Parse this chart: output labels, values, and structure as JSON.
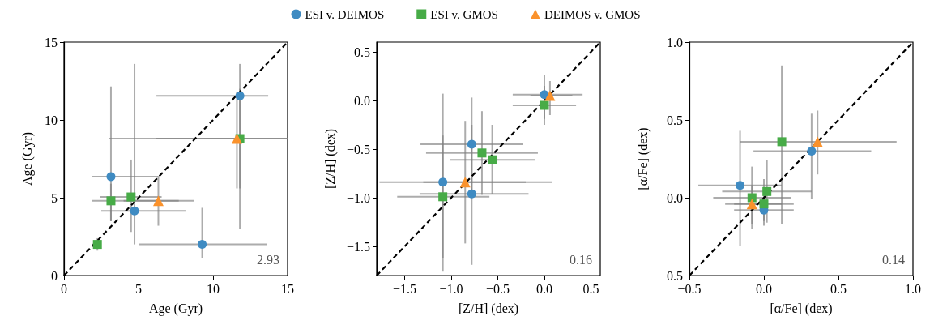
{
  "chart_data": [
    {
      "type": "scatter",
      "xlabel": "Age (Gyr)",
      "ylabel": "Age (Gyr)",
      "xlim": [
        0,
        15
      ],
      "ylim": [
        0,
        15
      ],
      "xticks": [
        0,
        5,
        10,
        15
      ],
      "yticks": [
        0,
        5,
        10,
        15
      ],
      "annotations": [
        "2.93"
      ],
      "series": [
        {
          "color": "#3f8bc2",
          "marker": "circle",
          "x": [
            11.8,
            3.15,
            4.73,
            9.27
          ],
          "values": [
            11.55,
            6.35,
            4.15,
            2.0
          ],
          "xerrors": [
            [
              6.2,
              13.7
            ],
            [
              1.9,
              6.3
            ],
            [
              2.5,
              8.15
            ],
            [
              5.0,
              13.6
            ]
          ],
          "errors": [
            [
              3.0,
              13.6
            ],
            [
              3.5,
              12.15
            ],
            [
              2.0,
              13.6
            ],
            [
              1.1,
              4.35
            ]
          ]
        },
        {
          "color": "#47ab47",
          "marker": "square",
          "x": [
            11.8,
            2.24,
            3.15,
            4.5
          ],
          "values": [
            8.8,
            2.0,
            4.8,
            5.05
          ],
          "xerrors": [
            [
              3.0,
              15.0
            ],
            [
              1.9,
              2.5
            ],
            [
              1.9,
              7.7
            ],
            [
              2.4,
              6.55
            ]
          ],
          "errors": [
            [
              5.6,
              12.0
            ],
            [
              1.6,
              2.4
            ],
            [
              3.5,
              5.9
            ],
            [
              2.8,
              7.45
            ]
          ]
        },
        {
          "color": "#fa922c",
          "marker": "triangle",
          "x": [
            11.6,
            6.33
          ],
          "values": [
            8.8,
            4.8
          ],
          "xerrors": [
            [
              6.15,
              15.0
            ],
            [
              4.0,
              8.7
            ]
          ],
          "errors": [
            [
              5.6,
              11.8
            ],
            [
              3.2,
              6.4
            ]
          ]
        },
        {
          "type": "line",
          "color": "#000000",
          "line_style": "dashed",
          "marker": "none",
          "x": [
            0,
            15
          ],
          "values": [
            0,
            15
          ]
        }
      ]
    },
    {
      "type": "scatter",
      "xlabel": "[Z/H] (dex)",
      "ylabel": "[Z/H] (dex)",
      "xlim": [
        -1.8,
        0.6
      ],
      "ylim": [
        -1.8,
        0.6
      ],
      "legend": "top",
      "xticks": [
        -1.5,
        {
          "value": -1,
          "label": "−1.0"
        },
        -0.5,
        {
          "value": 0,
          "label": "0.0"
        },
        0.5
      ],
      "yticks": [
        -1.5,
        {
          "value": -1,
          "label": "−1.0"
        },
        -0.5,
        {
          "value": 0,
          "label": "0.0"
        },
        0.5
      ],
      "annotations": [
        "0.16"
      ],
      "series": [
        {
          "name": "ESI v. DEIMOS",
          "color": "#3f8bc2",
          "marker": "circle",
          "x": [
            0.0,
            -0.78,
            -0.78,
            -1.09
          ],
          "values": [
            0.06,
            -0.45,
            -0.96,
            -0.84
          ],
          "xerrors": [
            [
              -0.34,
              0.41
            ],
            [
              -1.33,
              -0.23
            ],
            [
              -1.34,
              -0.17
            ],
            [
              -1.77,
              0.08
            ]
          ],
          "errors": [
            [
              -0.19,
              0.26
            ],
            [
              -0.97,
              0.03
            ],
            [
              -1.69,
              -0.25
            ],
            [
              -1.62,
              0.07
            ]
          ]
        },
        {
          "name": "ESI v. GMOS",
          "color": "#47ab47",
          "marker": "square",
          "x": [
            0.0,
            -0.67,
            -0.56,
            -1.09
          ],
          "values": [
            -0.05,
            -0.54,
            -0.61,
            -0.99
          ],
          "xerrors": [
            [
              -0.34,
              0.34
            ],
            [
              -1.27,
              -0.07
            ],
            [
              -1.01,
              -0.1
            ],
            [
              -1.58,
              -0.59
            ]
          ],
          "errors": [
            [
              -0.25,
              0.15
            ],
            [
              -0.97,
              -0.11
            ],
            [
              -0.96,
              -0.25
            ],
            [
              -1.76,
              -0.36
            ]
          ]
        },
        {
          "name": "DEIMOS v. GMOS",
          "color": "#fa922c",
          "marker": "triangle",
          "x": [
            0.06,
            -0.85
          ],
          "values": [
            0.05,
            -0.84
          ],
          "xerrors": [
            [
              -0.15,
              0.3
            ],
            [
              -1.3,
              -0.2
            ]
          ],
          "errors": [
            [
              -0.15,
              0.2
            ],
            [
              -1.47,
              -0.21
            ]
          ]
        },
        {
          "type": "line",
          "color": "#000000",
          "line_style": "dashed",
          "marker": "none",
          "x": [
            -1.8,
            0.6
          ],
          "values": [
            -1.8,
            0.6
          ]
        }
      ]
    },
    {
      "type": "scatter",
      "xlabel": "[α/Fe] (dex)",
      "ylabel": "[α/Fe] (dex)",
      "xlim": [
        -0.5,
        1.0
      ],
      "ylim": [
        -0.5,
        1.0
      ],
      "xticks": [
        -0.5,
        {
          "value": 0,
          "label": "0.0"
        },
        0.5,
        {
          "value": 1,
          "label": "1.0"
        }
      ],
      "yticks": [
        -0.5,
        {
          "value": 0,
          "label": "0.0"
        },
        0.5,
        {
          "value": 1,
          "label": "1.0"
        }
      ],
      "annotations": [
        "0.14"
      ],
      "series": [
        {
          "color": "#3f8bc2",
          "marker": "circle",
          "x": [
            -0.16,
            0.0,
            0.32
          ],
          "values": [
            0.08,
            -0.08,
            0.3
          ],
          "xerrors": [
            [
              -0.44,
              0.12
            ],
            [
              -0.2,
              0.2
            ],
            [
              -0.07,
              0.72
            ]
          ],
          "errors": [
            [
              -0.31,
              0.43
            ],
            [
              -0.15,
              0.0
            ],
            [
              -0.01,
              0.54
            ]
          ]
        },
        {
          "color": "#47ab47",
          "marker": "square",
          "x": [
            0.12,
            0.02,
            -0.08,
            0.0
          ],
          "values": [
            0.36,
            0.04,
            0.0,
            -0.04
          ],
          "xerrors": [
            [
              -0.16,
              0.32
            ],
            [
              -0.28,
              0.32
            ],
            [
              -0.34,
              0.18
            ],
            [
              -0.2,
              0.2
            ]
          ],
          "errors": [
            [
              -0.17,
              0.85
            ],
            [
              -0.16,
              0.24
            ],
            [
              -0.2,
              0.2
            ],
            [
              -0.18,
              0.12
            ]
          ]
        },
        {
          "color": "#fa922c",
          "marker": "triangle",
          "x": [
            0.36,
            -0.08
          ],
          "values": [
            0.36,
            -0.04
          ],
          "xerrors": [
            [
              0.32,
              0.89
            ],
            [
              -0.26,
              0.12
            ]
          ],
          "errors": [
            [
              0.15,
              0.56
            ],
            [
              -0.17,
              0.08
            ]
          ]
        },
        {
          "type": "line",
          "color": "#000000",
          "line_style": "dashed",
          "marker": "none",
          "x": [
            -0.5,
            1.0
          ],
          "values": [
            -0.5,
            1.0
          ]
        }
      ]
    }
  ]
}
